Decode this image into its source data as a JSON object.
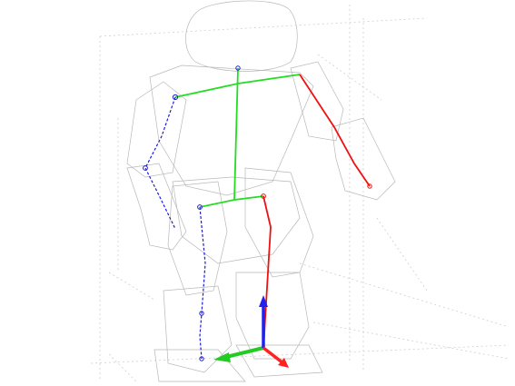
{
  "viewport": {
    "background": "#ffffff"
  },
  "colors": {
    "wireframe_mesh": "#b8b8b8",
    "wireframe_mesh_dark": "#9a9a9a",
    "grid": "#cfcfcf",
    "spine_bones": "#22dd22",
    "right_chain": "#ee1111",
    "left_chain": "#1c1cd8",
    "axis_x": "#ff2222",
    "axis_y": "#22cc22",
    "axis_z": "#2222ee"
  },
  "scene": {
    "subject": "robot-wireframe-model",
    "skeleton_chains": [
      "spine",
      "shoulders",
      "hips",
      "right-arm",
      "left-arm",
      "right-leg",
      "left-leg"
    ],
    "origin_axes": [
      "x",
      "y",
      "z"
    ]
  }
}
